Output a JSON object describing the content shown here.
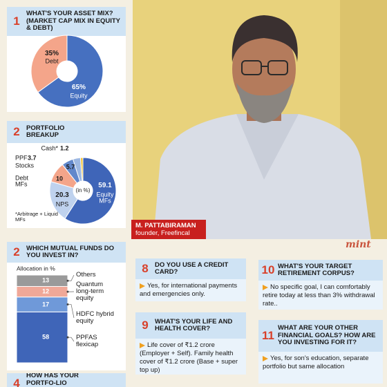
{
  "photo_caption": {
    "name": "M. PATTABIRAMAN",
    "role": "founder, Freefincal"
  },
  "logo": "mint",
  "panels": [
    {
      "number": "1",
      "title": "WHAT'S YOUR ASSET MIX? (MARKET CAP MIX IN EQUITY & DEBT)"
    },
    {
      "number": "2",
      "title": "PORTFOLIO BREAKUP"
    },
    {
      "number": "2",
      "title": "WHICH MUTUAL FUNDS DO YOU INVEST IN?"
    },
    {
      "number": "4",
      "title": "HOW HAS YOUR PORTFO-LIO PERFORMED?"
    }
  ],
  "questions": [
    {
      "number": "8",
      "title": "DO YOU USE A CREDIT CARD?",
      "answer": "Yes, for international payments and emergencies only."
    },
    {
      "number": "9",
      "title": "WHAT'S YOUR LIFE AND HEALTH COVER?",
      "answer": "Life cover of ₹1.2 crore (Employer + Self). Family health cover of ₹1.2 crore (Base + super top up)"
    },
    {
      "number": "10",
      "title": "WHAT'S YOUR TARGET RETIREMENT CORPUS?",
      "answer": "No specific goal, I can comfortably retire today at less than 3% withdrawal rate.."
    },
    {
      "number": "11",
      "title": "WHAT ARE YOUR OTHER FINANCIAL GOALS? HOW ARE YOU INVESTING FOR IT?",
      "answer": "Yes, for son's education, separate portfolio but same allocation"
    }
  ],
  "chart_data": [
    {
      "type": "donut",
      "categories": [
        "Debt",
        "Equity"
      ],
      "values": [
        35,
        65
      ],
      "value_labels": [
        "35%",
        "65%"
      ],
      "colors": [
        "#f4a58a",
        "#4670c0"
      ]
    },
    {
      "type": "donut",
      "categories": [
        "Cash*",
        "PPF",
        "Stocks",
        "Debt MFs",
        "NPS",
        "Equity MFs"
      ],
      "values": [
        1.2,
        3.7,
        5.7,
        10,
        20.3,
        59.1
      ],
      "colors": [
        "#f2c230",
        "#9db8e2",
        "#6288cb",
        "#f4a58a",
        "#bfd2ee",
        "#3f65b8"
      ],
      "center_label": "(in %)",
      "note": "*Arbitrage + Liquid MFs"
    },
    {
      "type": "stacked-bar",
      "axis_label": "Allocation in %",
      "categories": [
        "PPFAS flexicap",
        "HDFC hybrid equity",
        "Quantum long-term equity",
        "Others"
      ],
      "values": [
        58,
        17,
        12,
        13
      ],
      "colors": [
        "#3f65b8",
        "#6f99d9",
        "#f0a898",
        "#9a9a9a"
      ]
    }
  ]
}
